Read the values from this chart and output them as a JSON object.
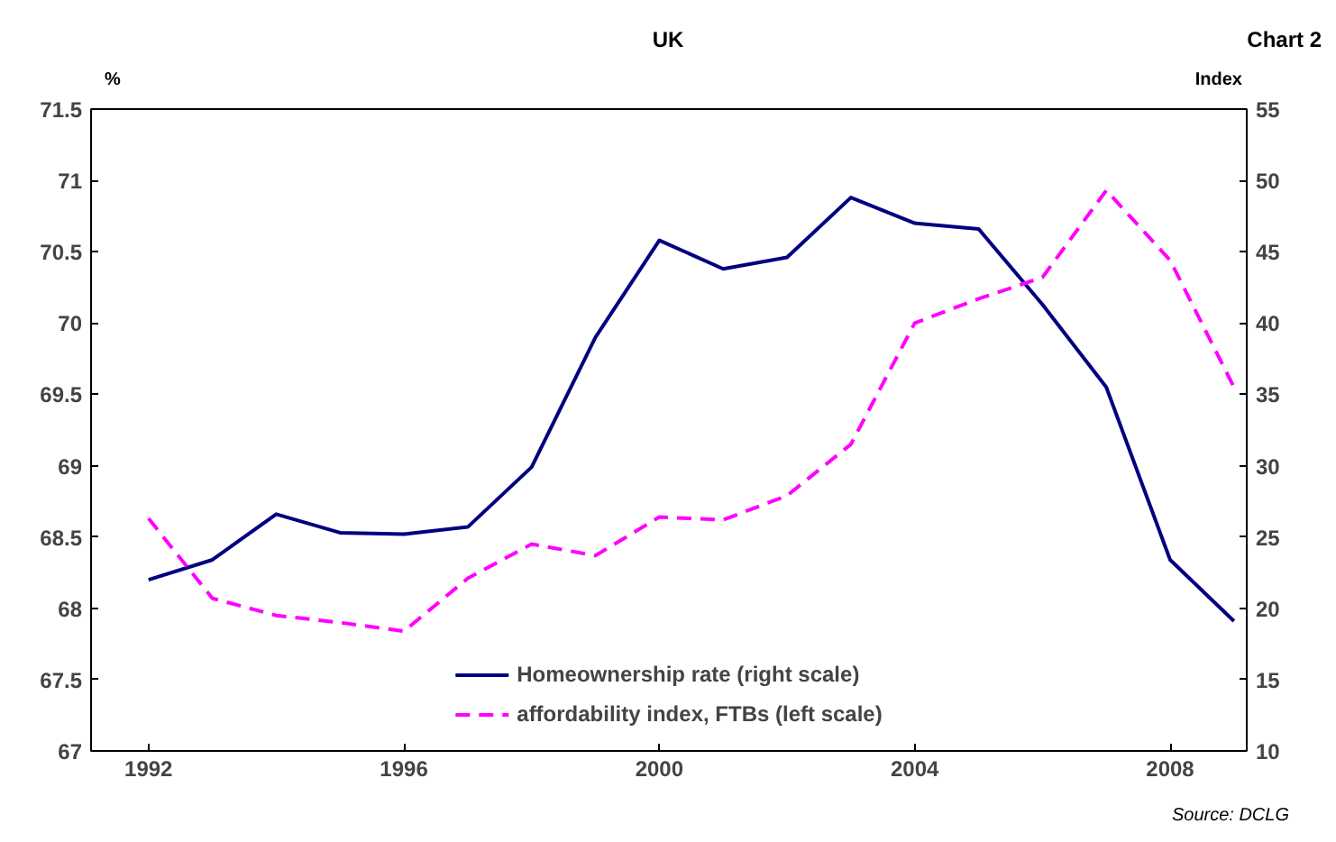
{
  "chart_data": {
    "type": "line",
    "title": "UK",
    "ylabel": "%",
    "y2label": "Index",
    "x": [
      1992,
      1993,
      1994,
      1995,
      1996,
      1997,
      1998,
      1999,
      2000,
      2001,
      2002,
      2003,
      2004,
      2005,
      2006,
      2007,
      2008,
      2009
    ],
    "series": [
      {
        "name": "Homeownership rate (right scale)",
        "color": "#000080",
        "line_style": "solid",
        "values": [
          68.2,
          68.34,
          68.66,
          68.53,
          68.52,
          68.57,
          68.99,
          69.9,
          70.58,
          70.38,
          70.46,
          70.88,
          70.7,
          70.66,
          70.13,
          69.55,
          68.34,
          67.91
        ]
      },
      {
        "name": "affordability index, FTBs (left scale)",
        "color": "#ff00ff",
        "line_style": "dashed",
        "axis": "y2",
        "values": [
          26.3,
          20.7,
          19.5,
          19.0,
          18.4,
          22.1,
          24.5,
          23.7,
          26.4,
          26.2,
          27.9,
          31.5,
          40.0,
          41.7,
          43.2,
          49.3,
          44.4,
          35.5
        ]
      }
    ],
    "xlim": [
      1991.1,
      2009.2
    ],
    "xticks": [
      1992,
      1996,
      2000,
      2004,
      2008
    ],
    "ylim": [
      67,
      71.5
    ],
    "yticks": [
      67,
      67.5,
      68,
      68.5,
      69,
      69.5,
      70,
      70.5,
      71,
      71.5
    ],
    "y2lim": [
      10,
      55
    ],
    "y2ticks": [
      10,
      15,
      20,
      25,
      30,
      35,
      40,
      45,
      50,
      55
    ],
    "grid": false,
    "legend": "bottom",
    "marker": "none",
    "annotations": [
      "Chart 2",
      "Source: DCLG"
    ]
  }
}
